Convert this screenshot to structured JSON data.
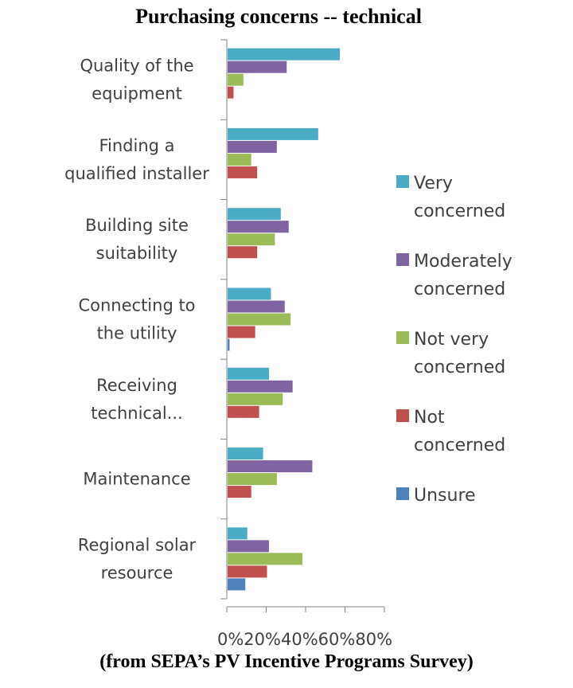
{
  "chart_data": {
    "type": "bar",
    "orientation": "horizontal",
    "title": "Purchasing concerns -- technical",
    "footnote": "(from SEPA’s PV Incentive Programs Survey)",
    "categories": [
      [
        "Quality of the",
        "equipment"
      ],
      [
        "Finding a",
        "qualified installer"
      ],
      [
        "Building site",
        "suitability"
      ],
      [
        "Connecting to",
        "the utility"
      ],
      [
        "Receiving",
        "technical..."
      ],
      [
        "Maintenance"
      ],
      [
        "Regional solar",
        "resource"
      ]
    ],
    "xlim": [
      0,
      80
    ],
    "xticks": [
      "0%",
      "20%",
      "40%",
      "60%",
      "80%"
    ],
    "xtick_values": [
      0,
      20,
      40,
      60,
      80
    ],
    "legend_position": "right",
    "series": [
      {
        "name": [
          "Very",
          "concerned"
        ],
        "color": "#4bacc6",
        "values": [
          57,
          46,
          27,
          22,
          21,
          18,
          10
        ]
      },
      {
        "name": [
          "Moderately",
          "concerned"
        ],
        "color": "#8064a2",
        "values": [
          30,
          25,
          31,
          29,
          33,
          43,
          21
        ]
      },
      {
        "name": [
          "Not very",
          "concerned"
        ],
        "color": "#9bbb59",
        "values": [
          8,
          12,
          24,
          32,
          28,
          25,
          38
        ]
      },
      {
        "name": [
          "Not",
          "concerned"
        ],
        "color": "#c0504d",
        "values": [
          3,
          15,
          15,
          14,
          16,
          12,
          20
        ]
      },
      {
        "name": [
          "Unsure"
        ],
        "color": "#4f81bd",
        "values": [
          0,
          0,
          0,
          1,
          0,
          0,
          9
        ]
      }
    ]
  }
}
